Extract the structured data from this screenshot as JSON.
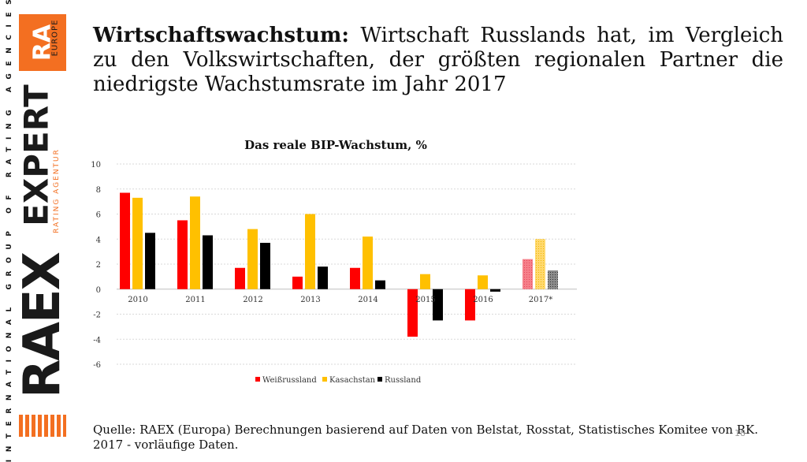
{
  "brand": {
    "tagline": "INTERNATIONAL GROUP OF RATING AGENCIES",
    "logo_top": "RA",
    "logo_europe": "EUROPE",
    "logo_main": "EXPERT",
    "logo_sub": "RATING AGENTUR",
    "logo_bottom": "RAEX",
    "accent_color": "#f36f21"
  },
  "headline": {
    "bold": "Wirtschaftswachstum:",
    "text": "Wirtschaft Russlands hat, im Vergleich zu den Volkswirtschaften, der größten regionalen Partner die niedrigste Wachstumsrate im Jahr 2017"
  },
  "chart_data": {
    "type": "bar",
    "title": "Das reale BIP-Wachstum, %",
    "categories": [
      "2010",
      "2011",
      "2012",
      "2013",
      "2014",
      "2015",
      "2016",
      "2017*"
    ],
    "series": [
      {
        "name": "Weißrussland",
        "color": "#ff0000",
        "values": [
          7.7,
          5.5,
          1.7,
          1.0,
          1.7,
          -3.8,
          -2.5,
          2.4
        ]
      },
      {
        "name": "Kasachstan",
        "color": "#ffc000",
        "values": [
          7.3,
          7.4,
          4.8,
          6.0,
          4.2,
          1.2,
          1.1,
          4.0
        ]
      },
      {
        "name": "Russland",
        "color": "#000000",
        "values": [
          4.5,
          4.3,
          3.7,
          1.8,
          0.7,
          -2.5,
          -0.2,
          1.5
        ]
      }
    ],
    "ylim": [
      -6,
      10
    ],
    "yticks": [
      "10",
      "8",
      "6",
      "4",
      "2",
      "0",
      "-2",
      "-4",
      "-6"
    ],
    "ytick_values": [
      10,
      8,
      6,
      4,
      2,
      0,
      -2,
      -4,
      -6
    ],
    "grid": true,
    "legend_position": "bottom",
    "xlabel": "",
    "ylabel": ""
  },
  "source": "Quelle: RAEX (Europa) Berechnungen basierend auf Daten von Belstat, Rosstat, Statistisches Komitee von RK. 2017 - vorläufige Daten.",
  "page_number": "18"
}
